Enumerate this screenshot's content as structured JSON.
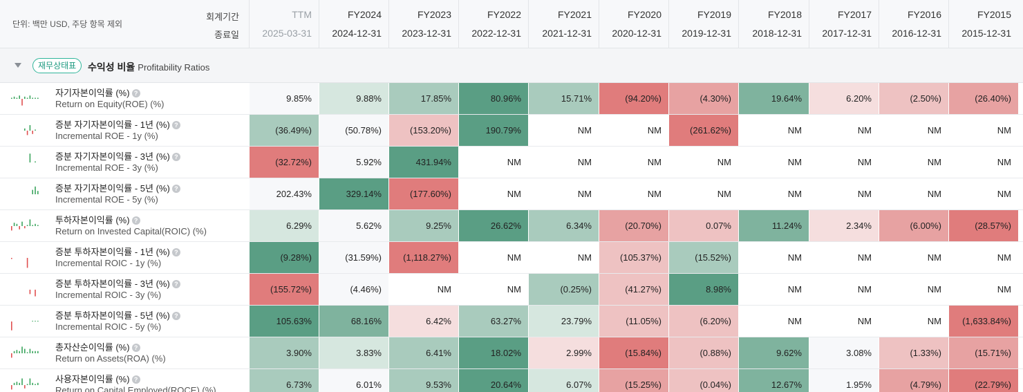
{
  "header": {
    "unit_note": "단위: 백만 USD, 주당 항목 제외",
    "period_label": "회계기간",
    "end_label": "종료일",
    "columns": [
      {
        "period": "TTM",
        "date": "2025-03-31"
      },
      {
        "period": "FY2024",
        "date": "2024-12-31"
      },
      {
        "period": "FY2023",
        "date": "2023-12-31"
      },
      {
        "period": "FY2022",
        "date": "2022-12-31"
      },
      {
        "period": "FY2021",
        "date": "2021-12-31"
      },
      {
        "period": "FY2020",
        "date": "2020-12-31"
      },
      {
        "period": "FY2019",
        "date": "2019-12-31"
      },
      {
        "period": "FY2018",
        "date": "2018-12-31"
      },
      {
        "period": "FY2017",
        "date": "2017-12-31"
      },
      {
        "period": "FY2016",
        "date": "2016-12-31"
      },
      {
        "period": "FY2015",
        "date": "2015-12-31"
      }
    ]
  },
  "section": {
    "badge": "재무상태표",
    "title": "수익성 비율",
    "title_en": "Profitability Ratios"
  },
  "colors": {
    "g4": "#5a9e84",
    "g3": "#7fb39e",
    "g2": "#a9cbbd",
    "g1": "#d6e7df",
    "r4": "#e07c7c",
    "r3": "#e7a2a2",
    "r2": "#eec2c2",
    "r1": "#f5dede",
    "none": "#ffffff",
    "plain": "#f7f8fa"
  },
  "rows": [
    {
      "name": "자기자본이익률 (%)",
      "en": "Return on Equity(ROE) (%)",
      "values": [
        "9.85%",
        "9.88%",
        "17.85%",
        "80.96%",
        "15.71%",
        "(94.20%)",
        "(4.30%)",
        "19.64%",
        "6.20%",
        "(2.50%)",
        "(26.40%)"
      ],
      "shades": [
        "plain",
        "g1",
        "g2",
        "g4",
        "g2",
        "r4",
        "r3",
        "g3",
        "r1",
        "r2",
        "r3"
      ],
      "spark": [
        1,
        2,
        1,
        3,
        -6,
        2,
        1,
        3,
        1,
        1,
        1
      ]
    },
    {
      "name": "증분 자기자본이익률 - 1년 (%)",
      "en": "Incremental ROE - 1y (%)",
      "values": [
        "(36.49%)",
        "(50.78%)",
        "(153.20%)",
        "190.79%",
        "NM",
        "NM",
        "(261.62%)",
        "NM",
        "NM",
        "NM",
        "NM"
      ],
      "shades": [
        "g2",
        "plain",
        "r2",
        "g4",
        "none",
        "none",
        "r4",
        "none",
        "none",
        "none",
        "none"
      ],
      "spark": [
        0,
        0,
        0,
        0,
        0,
        2,
        -4,
        5,
        -3,
        1,
        0
      ]
    },
    {
      "name": "증분 자기자본이익률 - 3년 (%)",
      "en": "Incremental ROE - 3y (%)",
      "values": [
        "(32.72%)",
        "5.92%",
        "431.94%",
        "NM",
        "NM",
        "NM",
        "NM",
        "NM",
        "NM",
        "NM",
        "NM"
      ],
      "shades": [
        "r4",
        "plain",
        "g4",
        "none",
        "none",
        "none",
        "none",
        "none",
        "none",
        "none",
        "none"
      ],
      "spark": [
        0,
        0,
        0,
        0,
        0,
        0,
        0,
        8,
        0,
        1,
        0
      ]
    },
    {
      "name": "증분 자기자본이익률 - 5년 (%)",
      "en": "Incremental ROE - 5y (%)",
      "values": [
        "202.43%",
        "329.14%",
        "(177.60%)",
        "NM",
        "NM",
        "NM",
        "NM",
        "NM",
        "NM",
        "NM",
        "NM"
      ],
      "shades": [
        "plain",
        "g4",
        "r4",
        "none",
        "none",
        "none",
        "none",
        "none",
        "none",
        "none",
        "none"
      ],
      "spark": [
        0,
        0,
        0,
        0,
        0,
        0,
        0,
        0,
        4,
        7,
        3
      ]
    },
    {
      "name": "투하자본이익률 (%)",
      "en": "Return on Invested Capital(ROIC) (%)",
      "values": [
        "6.29%",
        "5.62%",
        "9.25%",
        "26.62%",
        "6.34%",
        "(20.70%)",
        "0.07%",
        "11.24%",
        "2.34%",
        "(6.00%)",
        "(28.57%)"
      ],
      "shades": [
        "g1",
        "plain",
        "g2",
        "g4",
        "g2",
        "r3",
        "r2",
        "g3",
        "r1",
        "r3",
        "r4"
      ],
      "spark": [
        -4,
        3,
        2,
        -3,
        4,
        -2,
        1,
        6,
        1,
        2,
        1
      ]
    },
    {
      "name": "증분 투하자본이익률 - 1년 (%)",
      "en": "Incremental ROIC - 1y (%)",
      "values": [
        "(9.28%)",
        "(31.59%)",
        "(1,118.27%)",
        "NM",
        "NM",
        "(105.37%)",
        "(15.52%)",
        "NM",
        "NM",
        "NM",
        "NM"
      ],
      "shades": [
        "g4",
        "plain",
        "r4",
        "none",
        "none",
        "r2",
        "g2",
        "none",
        "none",
        "none",
        "none"
      ],
      "spark": [
        -1,
        0,
        0,
        0,
        0,
        0,
        -9,
        0,
        0,
        0,
        0
      ]
    },
    {
      "name": "증분 투하자본이익률 - 3년 (%)",
      "en": "Incremental ROIC - 3y (%)",
      "values": [
        "(155.72%)",
        "(4.46%)",
        "NM",
        "NM",
        "(0.25%)",
        "(41.27%)",
        "8.98%",
        "NM",
        "NM",
        "NM",
        "NM"
      ],
      "shades": [
        "r4",
        "plain",
        "none",
        "none",
        "g2",
        "r2",
        "g4",
        "none",
        "none",
        "none",
        "none"
      ],
      "spark": [
        0,
        0,
        0,
        0,
        0,
        0,
        0,
        -4,
        0,
        -6,
        0
      ]
    },
    {
      "name": "증분 투하자본이익률 - 5년 (%)",
      "en": "Incremental ROIC - 5y (%)",
      "values": [
        "105.63%",
        "68.16%",
        "6.42%",
        "63.27%",
        "23.79%",
        "(11.05%)",
        "(6.20%)",
        "NM",
        "NM",
        "NM",
        "(1,633.84%)"
      ],
      "shades": [
        "g4",
        "g3",
        "r1",
        "g2",
        "g1",
        "r2",
        "r2",
        "none",
        "none",
        "none",
        "r4"
      ],
      "spark": [
        -8,
        0,
        0,
        0,
        0,
        0,
        0,
        0,
        0.5,
        0.5,
        0.5
      ]
    },
    {
      "name": "총자산순이익률 (%)",
      "en": "Return on Assets(ROA) (%)",
      "values": [
        "3.90%",
        "3.83%",
        "6.41%",
        "18.02%",
        "2.99%",
        "(15.84%)",
        "(0.88%)",
        "9.62%",
        "3.08%",
        "(1.33%)",
        "(15.71%)"
      ],
      "shades": [
        "g2",
        "g1",
        "g2",
        "g4",
        "r1",
        "r4",
        "r2",
        "g3",
        "plain",
        "r2",
        "r3"
      ],
      "spark": [
        -4,
        2,
        3,
        2,
        6,
        4,
        1,
        4,
        2,
        2,
        2
      ]
    },
    {
      "name": "사용자본이익률 (%)",
      "en": "Return on Capital Employed(ROCE) (%)",
      "values": [
        "6.73%",
        "6.01%",
        "9.53%",
        "20.64%",
        "6.07%",
        "(15.25%)",
        "(0.04%)",
        "12.67%",
        "1.95%",
        "(4.79%)",
        "(22.79%)"
      ],
      "shades": [
        "g2",
        "plain",
        "g2",
        "g4",
        "g1",
        "r3",
        "r2",
        "g3",
        "plain",
        "r3",
        "r4"
      ],
      "spark": [
        -4,
        2,
        3,
        2,
        6,
        -3,
        1,
        6,
        2,
        1,
        2
      ]
    }
  ]
}
